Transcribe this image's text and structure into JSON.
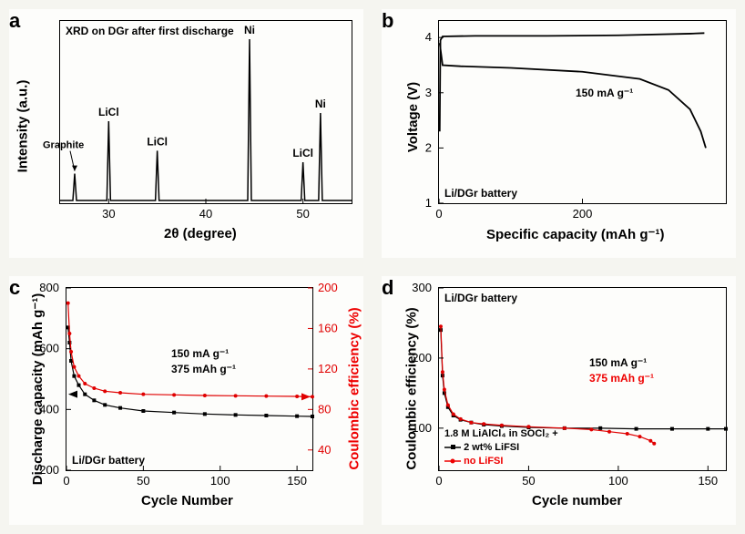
{
  "panels": {
    "a": {
      "label": "a",
      "title": "XRD on DGr after first discharge",
      "xlabel": "2θ (degree)",
      "ylabel": "Intensity (a.u.)",
      "xlim": [
        25,
        55
      ],
      "xticks": [
        30,
        40,
        50
      ],
      "peaks": [
        {
          "x": 26.5,
          "h": 0.18,
          "label": "Graphite"
        },
        {
          "x": 30.0,
          "h": 0.5,
          "label": "LiCl"
        },
        {
          "x": 35.0,
          "h": 0.32,
          "label": "LiCl"
        },
        {
          "x": 44.5,
          "h": 1.0,
          "label": "Ni"
        },
        {
          "x": 50.0,
          "h": 0.25,
          "label": "LiCl"
        },
        {
          "x": 51.8,
          "h": 0.55,
          "label": "Ni"
        }
      ],
      "line_color": "#000000",
      "bg": "#fdfdfb"
    },
    "b": {
      "label": "b",
      "xlabel": "Specific capacity (mAh g⁻¹)",
      "ylabel": "Voltage (V)",
      "xlim": [
        0,
        400
      ],
      "ylim": [
        1,
        4.3
      ],
      "xticks": [
        0,
        200
      ],
      "yticks": [
        1,
        2,
        3,
        4
      ],
      "annotation_rate": "150 mA g⁻¹",
      "annotation_system": "Li/DGr battery",
      "charge_curve": [
        [
          1,
          2.3
        ],
        [
          2,
          3.95
        ],
        [
          5,
          4.02
        ],
        [
          50,
          4.03
        ],
        [
          150,
          4.03
        ],
        [
          250,
          4.04
        ],
        [
          350,
          4.07
        ],
        [
          370,
          4.08
        ]
      ],
      "discharge_curve": [
        [
          1,
          3.9
        ],
        [
          5,
          3.5
        ],
        [
          30,
          3.48
        ],
        [
          100,
          3.45
        ],
        [
          200,
          3.38
        ],
        [
          280,
          3.25
        ],
        [
          320,
          3.05
        ],
        [
          350,
          2.7
        ],
        [
          365,
          2.3
        ],
        [
          372,
          2.0
        ]
      ],
      "line_color": "#000000"
    },
    "c": {
      "label": "c",
      "xlabel": "Cycle Number",
      "ylabel": "Discharge capacity (mAh g⁻¹)",
      "ylabel2": "Coulombic efficiency (%)",
      "xlim": [
        0,
        160
      ],
      "ylim": [
        200,
        800
      ],
      "y2lim": [
        20,
        200
      ],
      "xticks": [
        0,
        50,
        100,
        150
      ],
      "yticks": [
        200,
        400,
        600,
        800
      ],
      "y2ticks": [
        40,
        80,
        120,
        160,
        200
      ],
      "annotation_system": "Li/DGr battery",
      "annotation_rate": "150 mA g⁻¹",
      "annotation_cap": "375 mAh g⁻¹",
      "capacity_data": [
        [
          1,
          670
        ],
        [
          2,
          620
        ],
        [
          3,
          560
        ],
        [
          5,
          510
        ],
        [
          8,
          480
        ],
        [
          12,
          450
        ],
        [
          18,
          430
        ],
        [
          25,
          415
        ],
        [
          35,
          405
        ],
        [
          50,
          395
        ],
        [
          70,
          390
        ],
        [
          90,
          385
        ],
        [
          110,
          382
        ],
        [
          130,
          380
        ],
        [
          150,
          378
        ],
        [
          160,
          377
        ]
      ],
      "ce_data": [
        [
          1,
          750
        ],
        [
          2,
          650
        ],
        [
          3,
          590
        ],
        [
          5,
          540
        ],
        [
          8,
          510
        ],
        [
          12,
          485
        ],
        [
          18,
          470
        ],
        [
          25,
          460
        ],
        [
          35,
          455
        ],
        [
          50,
          450
        ],
        [
          70,
          448
        ],
        [
          90,
          446
        ],
        [
          110,
          445
        ],
        [
          130,
          444
        ],
        [
          150,
          443
        ],
        [
          160,
          442
        ]
      ],
      "cap_color": "#000000",
      "ce_color": "#e00000"
    },
    "d": {
      "label": "d",
      "xlabel": "Cycle number",
      "ylabel": "Coulombic efficiency (%)",
      "xlim": [
        0,
        160
      ],
      "ylim": [
        40,
        300
      ],
      "xticks": [
        0,
        50,
        100,
        150
      ],
      "yticks": [
        100,
        200,
        300
      ],
      "annotation_system": "Li/DGr battery",
      "annotation_rate": "150 mA g⁻¹",
      "annotation_cap": "375 mAh g⁻¹",
      "legend_title": "1.8 M LiAlCl₄ in SOCl₂ +",
      "legend1": "2 wt% LiFSI",
      "legend2": "no LiFSI",
      "series1_color": "#000000",
      "series2_color": "#e00000",
      "lifsi_data": [
        [
          1,
          240
        ],
        [
          2,
          175
        ],
        [
          3,
          150
        ],
        [
          5,
          130
        ],
        [
          8,
          118
        ],
        [
          12,
          112
        ],
        [
          18,
          108
        ],
        [
          25,
          105
        ],
        [
          35,
          103
        ],
        [
          50,
          101
        ],
        [
          70,
          100
        ],
        [
          90,
          100
        ],
        [
          110,
          99
        ],
        [
          130,
          99
        ],
        [
          150,
          99
        ],
        [
          160,
          99
        ]
      ],
      "nolifsi_data": [
        [
          1,
          245
        ],
        [
          2,
          180
        ],
        [
          3,
          155
        ],
        [
          5,
          133
        ],
        [
          8,
          120
        ],
        [
          12,
          113
        ],
        [
          18,
          108
        ],
        [
          25,
          106
        ],
        [
          35,
          104
        ],
        [
          50,
          102
        ],
        [
          70,
          100
        ],
        [
          85,
          98
        ],
        [
          95,
          95
        ],
        [
          105,
          92
        ],
        [
          112,
          88
        ],
        [
          118,
          82
        ],
        [
          120,
          78
        ]
      ]
    }
  }
}
